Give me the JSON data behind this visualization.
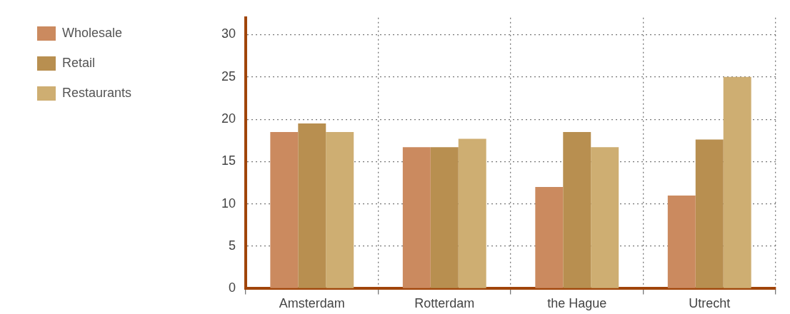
{
  "chart_data": {
    "type": "bar",
    "categories": [
      "Amsterdam",
      "Rotterdam",
      "the Hague",
      "Utrecht"
    ],
    "series": [
      {
        "name": "Wholesale",
        "color": "#cb8a5f",
        "values": [
          18.5,
          16.7,
          12.0,
          11.0
        ]
      },
      {
        "name": "Retail",
        "color": "#b88f50",
        "values": [
          19.5,
          16.7,
          18.5,
          17.6
        ]
      },
      {
        "name": "Restaurants",
        "color": "#ceae72",
        "values": [
          18.5,
          17.7,
          16.7,
          25.0
        ]
      }
    ],
    "ylim": [
      0,
      32
    ],
    "yticks": [
      0,
      5,
      10,
      15,
      20,
      25,
      30
    ],
    "grid": true,
    "legend": "top left"
  }
}
